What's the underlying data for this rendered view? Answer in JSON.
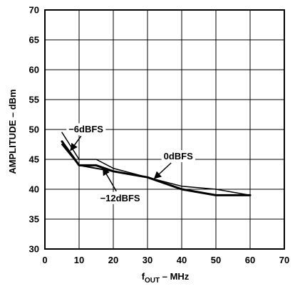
{
  "chart_data": {
    "type": "line",
    "title": "",
    "xlabel": {
      "main": "f",
      "sub": "OUT",
      "rest": " – MHz"
    },
    "ylabel": "AMPLITUDE – dBm",
    "xlim": [
      0,
      70
    ],
    "ylim": [
      30,
      70
    ],
    "xticks": [
      0,
      10,
      20,
      30,
      40,
      50,
      60,
      70
    ],
    "yticks": [
      30,
      35,
      40,
      45,
      50,
      55,
      60,
      65,
      70
    ],
    "xtick_labels": [
      "0",
      "10",
      "20",
      "30",
      "40",
      "50",
      "60",
      "70"
    ],
    "ytick_labels": [
      "30",
      "35",
      "40",
      "45",
      "50",
      "55",
      "60",
      "65",
      "70"
    ],
    "grid": true,
    "series": [
      {
        "name": "0dBFS",
        "x": [
          5,
          10,
          15,
          20,
          30,
          40,
          50,
          60
        ],
        "y": [
          48,
          44,
          44,
          43,
          42,
          40,
          39,
          39
        ]
      },
      {
        "name": "−6dBFS",
        "x": [
          5,
          10,
          15,
          20,
          30,
          40,
          50,
          60
        ],
        "y": [
          49.5,
          45,
          45,
          43.5,
          42,
          40.5,
          40,
          39
        ]
      },
      {
        "name": "−12dBFS",
        "x": [
          5,
          10,
          15,
          20,
          30,
          40,
          50,
          60
        ],
        "y": [
          47.5,
          44,
          43.5,
          43,
          42,
          40,
          39,
          39
        ]
      }
    ],
    "annotations": [
      {
        "text": "−6dBFS",
        "label_x": 12,
        "label_y": 49.5,
        "arrow_to_x": 7.5,
        "arrow_to_y": 46.5
      },
      {
        "text": "0dBFS",
        "label_x": 39,
        "label_y": 45,
        "arrow_to_x": 32,
        "arrow_to_y": 41.8
      },
      {
        "text": "−12dBFS",
        "label_x": 22,
        "label_y": 38,
        "arrow_to_x": 17,
        "arrow_to_y": 43.5
      }
    ],
    "colors": {
      "line": "#000000",
      "grid": "#000000",
      "background": "#ffffff"
    }
  }
}
